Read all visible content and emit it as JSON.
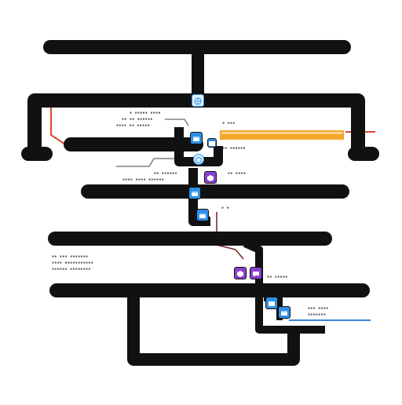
{
  "diagram": {
    "title": "",
    "colors": {
      "bar": "#111111",
      "red_line": "#e0452d",
      "orange_line": "#f4a52a",
      "blue_line": "#3a86d6",
      "node_blue": "#2e8fe6",
      "node_purple": "#8a3fd0",
      "gray_line": "#808080"
    },
    "nodes": [
      {
        "name": "node-top-globe",
        "icon": "globe-icon",
        "color": "#2e8fe6"
      },
      {
        "name": "node-blue-1",
        "icon": "window-icon",
        "color": "#2e8fe6"
      },
      {
        "name": "node-blue-small",
        "icon": "window-icon",
        "color": "#2e8fe6"
      },
      {
        "name": "node-purple-1",
        "icon": "hexagon-icon",
        "color": "#8a3fd0"
      },
      {
        "name": "node-blue-2",
        "icon": "window-icon",
        "color": "#2e8fe6"
      },
      {
        "name": "node-blue-3",
        "icon": "window-icon",
        "color": "#2e8fe6"
      },
      {
        "name": "node-purple-2",
        "icon": "hexagon-icon",
        "color": "#8a3fd0"
      },
      {
        "name": "node-purple-3",
        "icon": "chat-icon",
        "color": "#8a3fd0"
      },
      {
        "name": "node-blue-4",
        "icon": "window-icon",
        "color": "#2e8fe6"
      },
      {
        "name": "node-blue-5",
        "icon": "window-icon",
        "color": "#2e8fe6"
      }
    ]
  }
}
